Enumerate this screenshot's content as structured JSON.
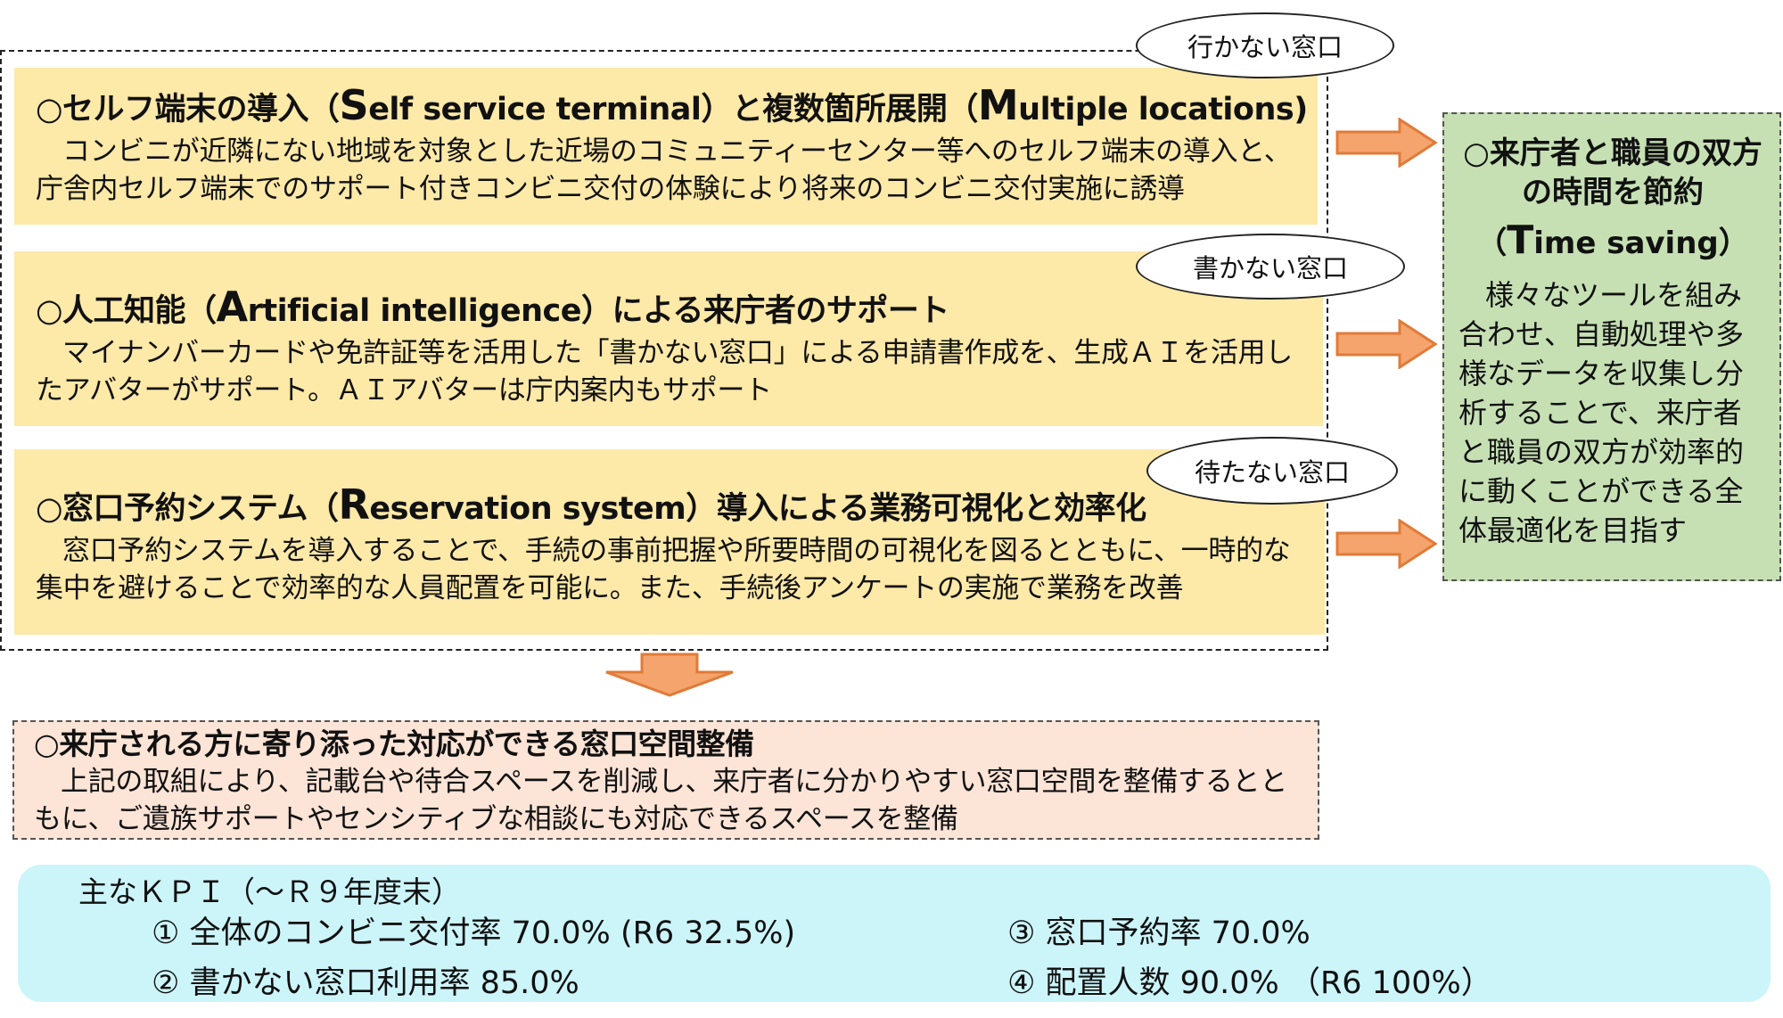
{
  "ovals": {
    "go": "行かない窓口",
    "write": "書かない窓口",
    "wait": "待たない窓口"
  },
  "boxes": [
    {
      "title_prefix": "○セルフ端末の導入（",
      "title_big": "S",
      "title_mid": "elf service terminal）と複数箇所展開（",
      "title_big2": "M",
      "title_end": "ultiple locations)",
      "body": "コンビニが近隣にない地域を対象とした近場のコミュニティーセンター等へのセルフ端末の導入と、庁舎内セルフ端末でのサポート付きコンビニ交付の体験により将来のコンビニ交付実施に誘導"
    },
    {
      "title_prefix": "○人工知能（",
      "title_big": "A",
      "title_end": "rtificial intelligence）による来庁者のサポート",
      "body": "マイナンバーカードや免許証等を活用した「書かない窓口」による申請書作成を、生成ＡＩを活用したアバターがサポート。ＡＩアバターは庁内案内もサポート"
    },
    {
      "title_prefix": "○窓口予約システム（",
      "title_big": "R",
      "title_end": "eservation system）導入による業務可視化と効率化",
      "body": "窓口予約システムを導入することで、手続の事前把握や所要時間の可視化を図るとともに、一時的な集中を避けることで効率的な人員配置を可能に。また、手続後アンケートの実施で業務を改善"
    }
  ],
  "green": {
    "title": "○来庁者と職員の双方の時間を節約",
    "sub_open": "（",
    "sub_big": "T",
    "sub_rest": "ime saving）",
    "body": "様々なツールを組み合わせ、自動処理や多様なデータを収集し分析することで、来庁者と職員の双方が効率的に動くことができる全体最適化を目指す"
  },
  "space": {
    "title": "○来庁される方に寄り添った対応ができる窓口空間整備",
    "body": "上記の取組により、記載台や待合スペースを削減し、来庁者に分かりやすい窓口空間を整備するとともに、ご遺族サポートやセンシティブな相談にも対応できるスペースを整備"
  },
  "kpi": {
    "title": "主なＫＰＩ（～Ｒ９年度末）",
    "items": [
      "①  全体のコンビニ交付率  70.0% (R6 32.5%)",
      "②  書かない窓口利用率    85.0%",
      "③  窓口予約率  70.0%",
      "④  配置人数  90.0%   （R6  100%）"
    ]
  },
  "colors": {
    "box_fill": "#fde9a8",
    "green_fill": "#c6e0b4",
    "pink_fill": "#fce4d6",
    "kpi_fill": "#ccf5fa",
    "arrow_fill": "#f4a46c",
    "arrow_stroke": "#e07b39"
  }
}
